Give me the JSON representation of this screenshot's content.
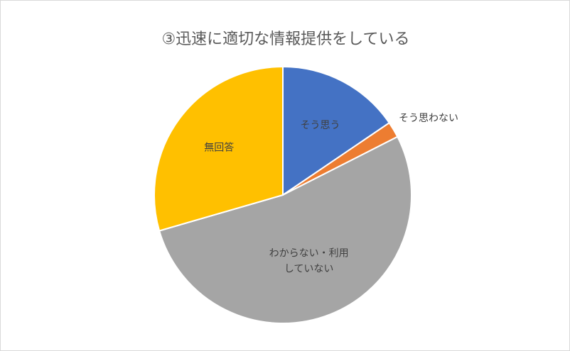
{
  "chart_data": {
    "type": "pie",
    "title": "③迅速に適切な情報提供をしている",
    "slices": [
      {
        "label": "そう思う",
        "value": 15.5,
        "color": "#4472C4"
      },
      {
        "label": "そう思わない",
        "value": 2.0,
        "color": "#ED7D31"
      },
      {
        "label": "わからない・利用\nしていない",
        "value": 53.0,
        "color": "#A5A5A5"
      },
      {
        "label": "無回答",
        "value": 29.5,
        "color": "#FFC000"
      }
    ]
  }
}
